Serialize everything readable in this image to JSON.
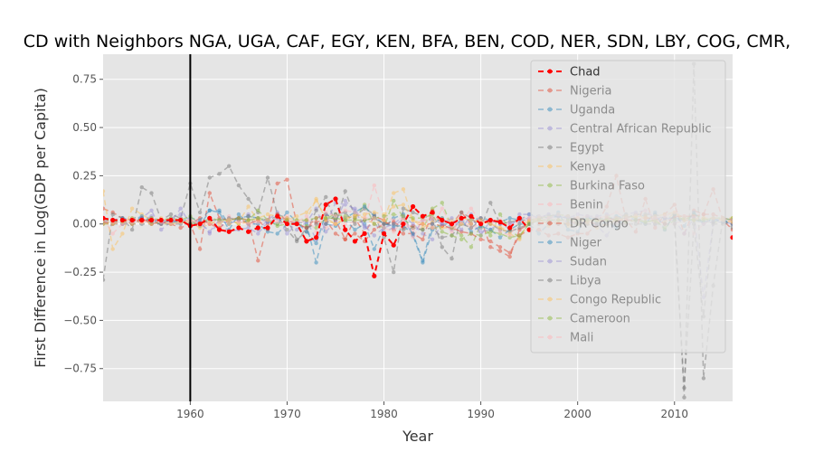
{
  "chart_data": {
    "type": "line",
    "title": "CD with Neighbors NGA, UGA, CAF, EGY, KEN, BFA, BEN, COD, NER, SDN, LBY, COG, CMR,",
    "xlabel": "Year",
    "ylabel": "First Difference in Log(GDP per Capita)",
    "xlim": [
      1951,
      2016
    ],
    "ylim": [
      -0.92,
      0.88
    ],
    "xticks": [
      1960,
      1970,
      1980,
      1990,
      2000,
      2010
    ],
    "yticks": [
      -0.75,
      -0.5,
      -0.25,
      0.0,
      0.25,
      0.5,
      0.75
    ],
    "ytick_labels": [
      "−0.75",
      "−0.50",
      "−0.25",
      "0.00",
      "0.25",
      "0.50",
      "0.75"
    ],
    "vline_x": 1960,
    "grid": true,
    "legend_position": "top-right",
    "x": [
      1951,
      1952,
      1953,
      1954,
      1955,
      1956,
      1957,
      1958,
      1959,
      1960,
      1961,
      1962,
      1963,
      1964,
      1965,
      1966,
      1967,
      1968,
      1969,
      1970,
      1971,
      1972,
      1973,
      1974,
      1975,
      1976,
      1977,
      1978,
      1979,
      1980,
      1981,
      1982,
      1983,
      1984,
      1985,
      1986,
      1987,
      1988,
      1989,
      1990,
      1991,
      1992,
      1993,
      1994,
      1995,
      1996,
      1997,
      1998,
      1999,
      2000,
      2001,
      2002,
      2003,
      2004,
      2005,
      2006,
      2007,
      2008,
      2009,
      2010,
      2011,
      2012,
      2013,
      2014,
      2015,
      2016
    ],
    "series": [
      {
        "name": "Chad",
        "color": "#ff0000",
        "highlight": true,
        "values": [
          0.03,
          0.02,
          0.02,
          0.02,
          0.02,
          0.02,
          0.02,
          0.02,
          0.02,
          -0.01,
          0.0,
          0.03,
          -0.03,
          -0.04,
          -0.02,
          -0.04,
          -0.02,
          -0.02,
          0.04,
          0.0,
          0.0,
          -0.09,
          -0.07,
          0.1,
          0.13,
          -0.03,
          -0.09,
          -0.05,
          -0.27,
          -0.05,
          -0.11,
          0.0,
          0.09,
          0.04,
          0.06,
          0.02,
          0.0,
          0.03,
          0.04,
          0.0,
          0.02,
          0.01,
          -0.02,
          0.03,
          -0.03,
          null,
          null,
          null,
          null,
          null,
          null,
          null,
          null,
          null,
          null,
          null,
          null,
          null,
          null,
          null,
          null,
          null,
          null,
          null,
          null,
          -0.07
        ]
      },
      {
        "name": "Nigeria",
        "color": "#e24a33",
        "values": [
          0.08,
          0.06,
          0.03,
          0.02,
          0.01,
          0.03,
          0.0,
          0.02,
          0.01,
          0.0,
          -0.13,
          0.16,
          0.03,
          0.02,
          0.03,
          0.02,
          -0.19,
          0.0,
          0.21,
          0.23,
          0.0,
          -0.02,
          0.03,
          0.05,
          0.02,
          -0.08,
          0.03,
          -0.05,
          0.04,
          0.02,
          -0.03,
          -0.05,
          -0.05,
          -0.08,
          0.07,
          -0.01,
          0.0,
          0.06,
          0.0,
          0.03,
          -0.12,
          -0.14,
          -0.17,
          -0.03,
          0.0,
          0.02,
          0.01,
          0.0,
          0.0,
          0.01,
          0.01,
          0.0,
          0.09,
          0.25,
          0.02,
          -0.04,
          0.13,
          -0.02,
          0.05,
          0.1,
          -0.05,
          0.07,
          0.05,
          0.18,
          0.02,
          -0.03
        ]
      },
      {
        "name": "Uganda",
        "color": "#348abd",
        "values": [
          0.02,
          0.01,
          0.0,
          0.02,
          0.03,
          0.01,
          0.0,
          0.02,
          0.01,
          0.02,
          -0.01,
          0.07,
          0.07,
          0.0,
          0.03,
          0.04,
          0.03,
          0.01,
          0.0,
          0.06,
          0.01,
          0.0,
          -0.2,
          0.0,
          -0.01,
          0.02,
          -0.03,
          0.0,
          -0.13,
          -0.02,
          0.03,
          0.05,
          -0.06,
          -0.2,
          -0.03,
          0.0,
          0.0,
          0.03,
          0.02,
          0.03,
          0.02,
          0.01,
          0.03,
          0.02,
          0.05,
          0.04,
          0.03,
          0.04,
          0.03,
          0.02,
          0.03,
          0.03,
          0.02,
          0.04,
          0.03,
          0.05,
          0.04,
          0.04,
          0.03,
          0.03,
          0.02,
          0.02,
          0.01,
          0.02,
          0.01,
          0.0
        ]
      },
      {
        "name": "Central African Republic",
        "color": "#988ed5",
        "values": [
          0.01,
          0.02,
          0.0,
          0.01,
          0.03,
          0.07,
          -0.03,
          0.01,
          0.08,
          0.0,
          0.01,
          -0.04,
          0.02,
          0.0,
          0.02,
          0.05,
          -0.03,
          0.02,
          0.06,
          0.0,
          -0.03,
          0.01,
          0.08,
          -0.04,
          0.01,
          0.12,
          0.07,
          -0.02,
          0.0,
          -0.04,
          -0.02,
          0.03,
          -0.06,
          0.02,
          0.02,
          0.0,
          -0.03,
          0.02,
          0.0,
          -0.04,
          -0.03,
          0.01,
          -0.03,
          0.05,
          0.05,
          0.03,
          0.05,
          0.02,
          0.01,
          0.01,
          0.0,
          -0.01,
          -0.06,
          0.01,
          0.02,
          0.02,
          0.03,
          0.0,
          0.02,
          0.02,
          0.02,
          0.05,
          -0.38,
          0.01,
          0.03,
          0.02
        ]
      },
      {
        "name": "Egypt",
        "color": "#777777",
        "values": [
          -0.29,
          0.05,
          0.03,
          -0.03,
          0.19,
          0.16,
          0.02,
          0.05,
          0.03,
          0.21,
          0.06,
          0.24,
          0.26,
          0.3,
          0.2,
          0.13,
          0.06,
          0.24,
          0.05,
          0.03,
          -0.08,
          -0.04,
          0.07,
          0.14,
          0.0,
          0.17,
          0.04,
          0.08,
          0.05,
          -0.07,
          -0.25,
          0.08,
          0.06,
          0.04,
          0.03,
          -0.12,
          -0.18,
          0.06,
          0.03,
          -0.02,
          0.11,
          0.0,
          0.01,
          0.02,
          0.02,
          0.03,
          0.03,
          0.04,
          0.04,
          0.03,
          0.02,
          0.02,
          0.02,
          0.03,
          0.03,
          0.05,
          0.05,
          0.05,
          0.03,
          0.03,
          -0.9,
          0.83,
          -0.8,
          -0.32,
          0.03,
          -0.02
        ]
      },
      {
        "name": "Kenya",
        "color": "#fbc15e",
        "values": [
          0.17,
          -0.13,
          -0.05,
          0.08,
          0.05,
          0.02,
          0.03,
          0.0,
          0.02,
          0.01,
          -0.02,
          0.0,
          0.02,
          0.0,
          0.01,
          0.09,
          0.02,
          0.02,
          0.03,
          0.02,
          0.04,
          0.06,
          0.12,
          0.03,
          0.0,
          0.02,
          0.05,
          0.03,
          0.0,
          0.02,
          0.16,
          0.18,
          0.02,
          -0.02,
          0.01,
          0.03,
          0.02,
          0.03,
          0.02,
          0.01,
          0.0,
          -0.02,
          -0.03,
          0.0,
          0.01,
          0.02,
          0.0,
          0.01,
          -0.01,
          0.0,
          0.0,
          -0.02,
          0.0,
          0.02,
          0.03,
          0.04,
          0.04,
          0.01,
          0.01,
          0.06,
          0.03,
          0.03,
          0.03,
          0.03,
          0.03,
          0.03
        ]
      },
      {
        "name": "Burkina Faso",
        "color": "#8eba42",
        "values": [
          0.0,
          0.01,
          0.02,
          0.0,
          0.02,
          0.01,
          0.0,
          0.0,
          0.01,
          0.0,
          0.01,
          0.0,
          0.01,
          0.02,
          0.0,
          0.02,
          0.07,
          0.02,
          -0.01,
          0.0,
          0.0,
          -0.01,
          -0.02,
          0.03,
          0.05,
          0.04,
          0.03,
          0.1,
          0.0,
          -0.02,
          0.12,
          0.03,
          -0.02,
          -0.03,
          0.08,
          0.11,
          -0.02,
          -0.06,
          -0.12,
          0.0,
          -0.06,
          0.05,
          -0.03,
          -0.07,
          0.01,
          0.03,
          0.04,
          0.05,
          0.04,
          0.0,
          0.03,
          0.01,
          0.04,
          0.02,
          0.05,
          0.03,
          0.01,
          0.02,
          -0.03,
          0.05,
          0.02,
          0.05,
          0.03,
          0.01,
          0.01,
          0.03
        ]
      },
      {
        "name": "Benin",
        "color": "#ffb5b8",
        "values": [
          0.03,
          -0.05,
          0.0,
          0.03,
          0.01,
          0.02,
          0.0,
          0.01,
          0.02,
          0.02,
          0.01,
          0.0,
          -0.03,
          0.04,
          0.01,
          0.0,
          0.0,
          0.02,
          0.03,
          0.04,
          0.0,
          0.02,
          0.0,
          -0.02,
          0.0,
          0.0,
          0.01,
          0.02,
          0.2,
          0.04,
          0.02,
          0.03,
          -0.07,
          0.02,
          0.03,
          0.01,
          -0.04,
          0.02,
          -0.02,
          0.0,
          0.01,
          0.02,
          0.0,
          0.01,
          0.02,
          0.02,
          0.03,
          0.02,
          0.02,
          0.03,
          0.02,
          0.02,
          0.01,
          0.01,
          0.0,
          0.02,
          0.03,
          0.02,
          0.0,
          0.0,
          0.02,
          0.02,
          0.03,
          0.03,
          0.02,
          0.01
        ]
      },
      {
        "name": "DR Congo",
        "color": "#e24a33",
        "values": [
          0.01,
          0.0,
          0.02,
          0.0,
          0.03,
          0.0,
          0.01,
          0.0,
          -0.02,
          0.0,
          0.03,
          0.0,
          -0.02,
          0.02,
          0.03,
          0.0,
          0.02,
          -0.03,
          0.05,
          0.02,
          0.0,
          -0.02,
          0.01,
          0.02,
          -0.05,
          -0.08,
          -0.05,
          -0.09,
          -0.03,
          0.0,
          0.01,
          -0.02,
          -0.01,
          0.0,
          0.0,
          -0.01,
          -0.02,
          -0.04,
          -0.05,
          -0.08,
          -0.09,
          -0.12,
          -0.15,
          -0.06,
          -0.03,
          -0.03,
          -0.06,
          -0.05,
          -0.07,
          -0.05,
          -0.05,
          0.0,
          0.03,
          0.02,
          0.02,
          0.02,
          0.03,
          0.03,
          0.0,
          0.04,
          0.04,
          0.04,
          0.05,
          0.05,
          0.03,
          0.02
        ]
      },
      {
        "name": "Niger",
        "color": "#348abd",
        "values": [
          0.03,
          0.02,
          0.03,
          0.02,
          0.04,
          0.01,
          0.02,
          0.01,
          0.01,
          0.03,
          0.02,
          0.07,
          0.06,
          -0.03,
          0.05,
          0.0,
          0.0,
          -0.04,
          -0.05,
          0.0,
          0.01,
          -0.04,
          -0.1,
          0.05,
          0.03,
          0.03,
          0.06,
          0.09,
          0.04,
          0.0,
          -0.01,
          -0.01,
          -0.05,
          -0.19,
          0.0,
          0.03,
          -0.02,
          0.02,
          -0.04,
          -0.01,
          -0.03,
          -0.07,
          -0.03,
          0.0,
          0.0,
          -0.05,
          0.0,
          0.06,
          -0.03,
          -0.04,
          0.04,
          0.0,
          0.01,
          -0.02,
          0.04,
          0.02,
          0.0,
          0.06,
          -0.03,
          0.05,
          -0.01,
          0.06,
          0.0,
          0.03,
          0.01,
          0.02
        ]
      },
      {
        "name": "Sudan",
        "color": "#988ed5",
        "values": [
          0.02,
          0.02,
          0.01,
          0.0,
          0.02,
          0.04,
          0.0,
          0.03,
          0.05,
          0.02,
          0.01,
          -0.05,
          0.01,
          -0.04,
          -0.03,
          -0.02,
          -0.05,
          0.01,
          0.03,
          -0.05,
          0.0,
          0.02,
          -0.08,
          0.0,
          0.11,
          0.1,
          0.08,
          -0.01,
          -0.06,
          -0.02,
          0.0,
          0.04,
          0.0,
          -0.05,
          -0.08,
          0.0,
          0.03,
          -0.03,
          0.05,
          -0.06,
          0.02,
          0.0,
          0.0,
          0.02,
          0.03,
          0.03,
          0.05,
          0.04,
          0.03,
          0.05,
          0.04,
          0.04,
          0.05,
          0.03,
          0.05,
          0.06,
          0.07,
          0.03,
          0.03,
          0.02,
          -0.05,
          0.03,
          0.0,
          0.01,
          0.01,
          0.0
        ]
      },
      {
        "name": "Libya",
        "color": "#777777",
        "values": [
          0.0,
          0.0,
          0.0,
          0.0,
          0.0,
          0.0,
          0.0,
          0.0,
          0.0,
          0.0,
          0.0,
          0.02,
          0.02,
          0.03,
          0.02,
          0.04,
          0.03,
          0.02,
          0.04,
          -0.03,
          -0.09,
          -0.02,
          0.0,
          0.0,
          0.05,
          0.06,
          0.0,
          0.02,
          0.03,
          0.0,
          0.0,
          -0.03,
          -0.02,
          -0.03,
          -0.02,
          -0.07,
          -0.06,
          0.0,
          -0.02,
          0.02,
          0.0,
          -0.03,
          -0.04,
          -0.02,
          0.0,
          0.0,
          0.0,
          0.0,
          0.0,
          0.0,
          0.0,
          0.0,
          0.0,
          0.0,
          0.0,
          0.0,
          0.0,
          0.0,
          0.0,
          0.0,
          -0.85,
          0.0,
          -0.48,
          0.0,
          0.0,
          0.0
        ]
      },
      {
        "name": "Congo Republic",
        "color": "#fbc15e",
        "values": [
          0.0,
          0.0,
          0.01,
          0.0,
          0.01,
          0.0,
          0.02,
          0.0,
          0.01,
          0.02,
          0.0,
          0.01,
          0.0,
          0.02,
          0.0,
          0.01,
          0.03,
          0.05,
          0.04,
          0.03,
          0.02,
          0.02,
          0.13,
          0.02,
          0.0,
          0.03,
          0.04,
          0.05,
          0.06,
          0.05,
          0.09,
          0.1,
          0.02,
          0.0,
          -0.02,
          -0.02,
          -0.02,
          0.0,
          0.0,
          0.02,
          0.0,
          -0.02,
          -0.05,
          -0.08,
          0.02,
          0.03,
          -0.01,
          0.02,
          0.0,
          0.03,
          0.01,
          0.02,
          0.02,
          0.03,
          0.04,
          0.04,
          0.03,
          0.04,
          0.05,
          0.06,
          0.02,
          0.02,
          0.03,
          0.03,
          0.02,
          0.01
        ]
      },
      {
        "name": "Cameroon",
        "color": "#8eba42",
        "values": [
          0.02,
          0.02,
          0.01,
          0.03,
          0.02,
          0.03,
          0.02,
          0.03,
          0.02,
          0.04,
          0.0,
          0.03,
          0.02,
          0.02,
          0.03,
          0.02,
          0.03,
          0.02,
          0.0,
          0.02,
          0.02,
          0.02,
          0.03,
          0.03,
          0.03,
          0.02,
          0.02,
          0.02,
          0.03,
          0.04,
          0.05,
          0.04,
          0.03,
          0.03,
          0.05,
          -0.04,
          -0.06,
          -0.08,
          -0.05,
          -0.06,
          -0.04,
          -0.05,
          -0.07,
          -0.06,
          0.0,
          0.02,
          0.02,
          0.02,
          0.02,
          0.02,
          0.02,
          0.02,
          0.02,
          0.02,
          0.01,
          0.02,
          0.01,
          0.02,
          -0.02,
          0.02,
          0.03,
          0.02,
          0.02,
          0.03,
          0.03,
          0.02
        ]
      },
      {
        "name": "Mali",
        "color": "#ffb5b8",
        "values": [
          0.02,
          0.01,
          0.0,
          0.01,
          0.01,
          0.02,
          0.01,
          0.0,
          0.01,
          0.02,
          0.0,
          0.0,
          0.01,
          0.02,
          0.01,
          0.0,
          0.01,
          0.02,
          0.01,
          0.0,
          0.01,
          0.04,
          -0.04,
          0.06,
          0.04,
          0.07,
          0.06,
          0.03,
          0.03,
          -0.02,
          -0.04,
          0.02,
          -0.03,
          0.03,
          -0.02,
          0.08,
          -0.01,
          0.01,
          0.08,
          0.01,
          0.02,
          -0.04,
          -0.06,
          0.03,
          0.03,
          0.04,
          0.03,
          0.05,
          0.04,
          0.03,
          0.04,
          0.03,
          0.04,
          0.06,
          0.03,
          0.05,
          0.07,
          0.03,
          0.04,
          0.06,
          0.04,
          -0.05,
          0.0,
          0.03,
          0.03,
          0.02
        ]
      }
    ]
  }
}
